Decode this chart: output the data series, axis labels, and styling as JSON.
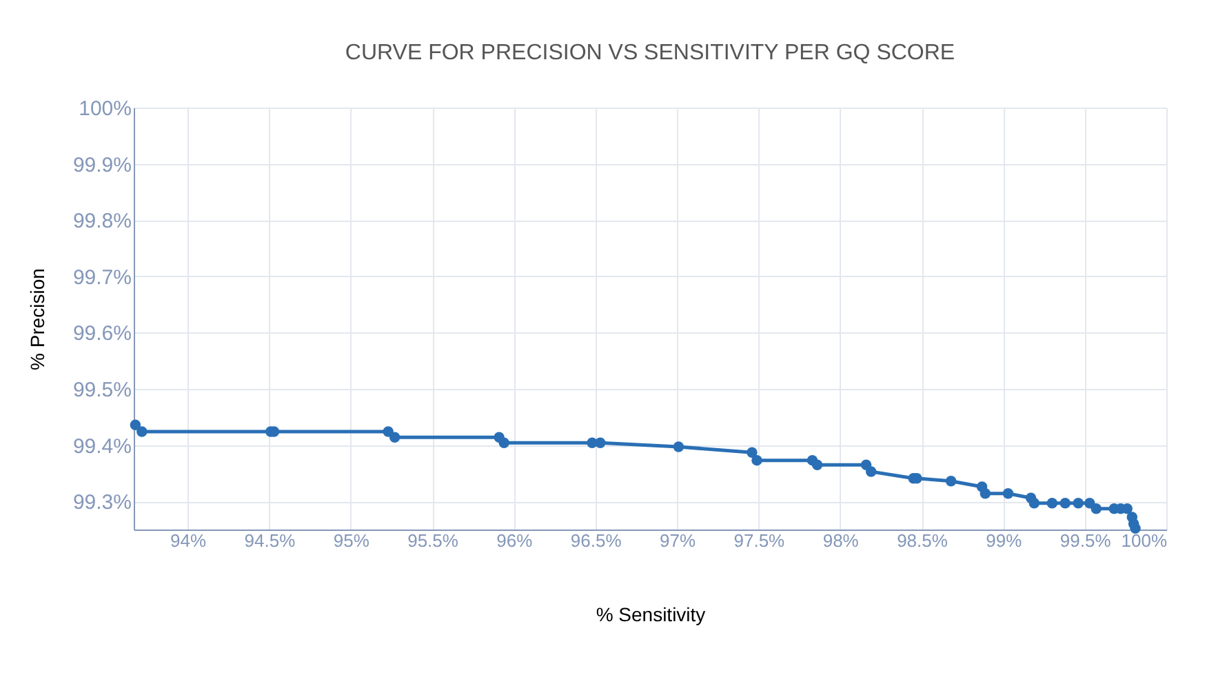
{
  "chart_data": {
    "type": "line",
    "title": "CURVE FOR PRECISION VS SENSITIVITY PER GQ SCORE",
    "xlabel": "% Sensitivity",
    "ylabel": "% Precision",
    "x": [
      93.68,
      93.72,
      94.51,
      94.53,
      95.23,
      95.27,
      95.91,
      95.94,
      96.48,
      96.53,
      97.01,
      97.46,
      97.49,
      97.83,
      97.86,
      98.16,
      98.19,
      98.45,
      98.47,
      98.68,
      98.87,
      98.89,
      99.03,
      99.17,
      99.19,
      99.3,
      99.38,
      99.46,
      99.53,
      99.57,
      99.68,
      99.72,
      99.76,
      99.79,
      99.8,
      99.81
    ],
    "series": [
      {
        "color": "#2a6fb5",
        "values": [
          99.436,
          99.424,
          99.424,
          99.424,
          99.424,
          99.414,
          99.414,
          99.404,
          99.404,
          99.404,
          99.397,
          99.387,
          99.373,
          99.373,
          99.365,
          99.365,
          99.353,
          99.341,
          99.341,
          99.336,
          99.326,
          99.314,
          99.314,
          99.306,
          99.297,
          99.297,
          99.297,
          99.297,
          99.297,
          99.287,
          99.287,
          99.287,
          99.287,
          99.272,
          99.26,
          99.252
        ]
      }
    ],
    "xlim": [
      93.67,
      100
    ],
    "xticks": [
      {
        "value": 94,
        "label": "94%"
      },
      {
        "value": 94.5,
        "label": "94.5%"
      },
      {
        "value": 95,
        "label": "95%"
      },
      {
        "value": 95.5,
        "label": "95.5%"
      },
      {
        "value": 96,
        "label": "96%"
      },
      {
        "value": 96.5,
        "label": "96.5%"
      },
      {
        "value": 97,
        "label": "97%"
      },
      {
        "value": 97.5,
        "label": "97.5%"
      },
      {
        "value": 98,
        "label": "98%"
      },
      {
        "value": 98.5,
        "label": "98.5%"
      },
      {
        "value": 99,
        "label": "99%"
      },
      {
        "value": 99.5,
        "label": "99.5%"
      },
      {
        "value": 100,
        "label": "100%"
      }
    ],
    "ylim": [
      99.25,
      100
    ],
    "yticks": [
      {
        "value": 99.3,
        "label": "99.3%"
      },
      {
        "value": 99.4,
        "label": "99.4%"
      },
      {
        "value": 99.5,
        "label": "99.5%"
      },
      {
        "value": 99.6,
        "label": "99.6%"
      },
      {
        "value": 99.7,
        "label": "99.7%"
      },
      {
        "value": 99.8,
        "label": "99.8%"
      },
      {
        "value": 99.9,
        "label": "99.9%"
      },
      {
        "value": 100,
        "label": "100%"
      }
    ],
    "grid": true,
    "marker": "circle",
    "line_style": "solid"
  }
}
